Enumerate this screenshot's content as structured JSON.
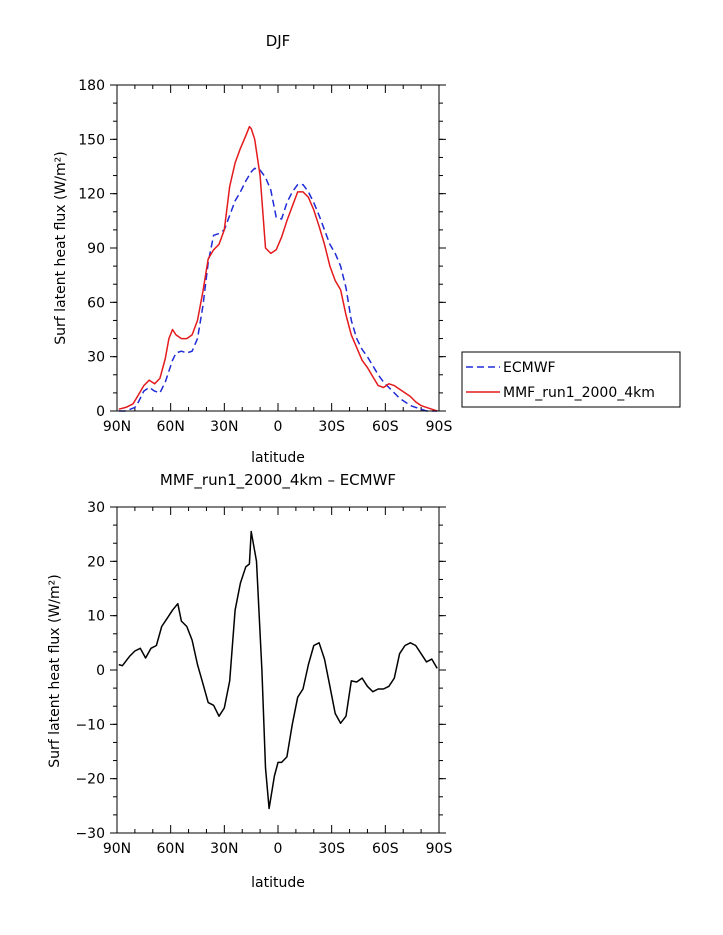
{
  "chart_data": [
    {
      "type": "line",
      "title": "DJF",
      "xlabel": "latitude",
      "ylabel": "Surf latent heat flux (W/m²)",
      "xlim": [
        90,
        -90
      ],
      "ylim": [
        0,
        180
      ],
      "xticks": [
        90,
        60,
        30,
        0,
        -30,
        -60,
        -90
      ],
      "xtick_labels": [
        "90N",
        "60N",
        "30N",
        "0",
        "30S",
        "60S",
        "90S"
      ],
      "yticks": [
        0,
        30,
        60,
        90,
        120,
        150,
        180
      ],
      "ytick_labels": [
        "0",
        "30",
        "60",
        "90",
        "120",
        "150",
        "180"
      ],
      "legend_position": "right",
      "series": [
        {
          "name": "ECMWF",
          "color": "#1f2bd6",
          "dash": true,
          "x": [
            89,
            85,
            80,
            78,
            75,
            72,
            69,
            66,
            63,
            61,
            59,
            57,
            54,
            51,
            48,
            45,
            42,
            39,
            36,
            33,
            30,
            27,
            24,
            21,
            18,
            15,
            13,
            10,
            7,
            4,
            1,
            -2,
            -5,
            -8,
            -11,
            -14,
            -17,
            -20,
            -23,
            -26,
            -29,
            -32,
            -35,
            -38,
            -41,
            -44,
            -47,
            -50,
            -53,
            -56,
            -59,
            -62,
            -65,
            -68,
            -71,
            -74,
            -77,
            -80,
            -83,
            -86,
            -89
          ],
          "y": [
            0,
            0,
            2,
            5,
            11,
            13,
            11,
            10,
            16,
            22,
            28,
            32,
            33,
            32,
            33,
            40,
            58,
            82,
            97,
            98,
            100,
            108,
            116,
            121,
            127,
            132,
            134,
            133,
            129,
            122,
            107,
            106,
            115,
            121,
            125,
            125,
            121,
            115,
            108,
            100,
            92,
            87,
            80,
            68,
            50,
            40,
            34,
            30,
            25,
            20,
            16,
            13,
            10,
            7,
            5,
            3,
            2,
            1,
            0,
            0,
            0
          ]
        },
        {
          "name": "MMF_run1_2000_4km",
          "color": "#e41a1c",
          "dash": false,
          "x": [
            89,
            85,
            81,
            78,
            75,
            72,
            69,
            66,
            63,
            61,
            59,
            57,
            54,
            51,
            48,
            45,
            42,
            39,
            36,
            33,
            30,
            27,
            24,
            21,
            18,
            16,
            15,
            13,
            10,
            7,
            4,
            1,
            -2,
            -5,
            -8,
            -11,
            -14,
            -17,
            -20,
            -23,
            -26,
            -29,
            -32,
            -35,
            -38,
            -41,
            -44,
            -47,
            -50,
            -53,
            -56,
            -59,
            -62,
            -65,
            -68,
            -71,
            -74,
            -77,
            -80,
            -83,
            -86,
            -89
          ],
          "y": [
            1,
            2,
            4,
            9,
            14,
            17,
            15,
            18,
            29,
            40,
            45,
            42,
            40,
            40,
            42,
            50,
            66,
            84,
            89,
            92,
            100,
            124,
            137,
            145,
            152,
            157,
            156,
            150,
            130,
            90,
            87,
            89,
            96,
            105,
            113,
            121,
            121,
            118,
            111,
            102,
            92,
            80,
            72,
            67,
            53,
            42,
            35,
            28,
            24,
            19,
            14,
            13,
            15,
            14,
            12,
            10,
            8,
            5,
            3,
            2,
            1,
            0
          ]
        }
      ]
    },
    {
      "type": "line",
      "title": "MMF_run1_2000_4km – ECMWF",
      "xlabel": "latitude",
      "ylabel": "Surf latent heat flux (W/m²)",
      "xlim": [
        90,
        -90
      ],
      "ylim": [
        -30,
        30
      ],
      "xticks": [
        90,
        60,
        30,
        0,
        -30,
        -60,
        -90
      ],
      "xtick_labels": [
        "90N",
        "60N",
        "30N",
        "0",
        "30S",
        "60S",
        "90S"
      ],
      "yticks": [
        -30,
        -20,
        -10,
        0,
        10,
        20,
        30
      ],
      "ytick_labels": [
        "−30",
        "−20",
        "−10",
        "0",
        "10",
        "20",
        "30"
      ],
      "series": [
        {
          "color": "#000000",
          "dash": false,
          "x": [
            89,
            87,
            83,
            80,
            77,
            74,
            71,
            68,
            65,
            62,
            59,
            56,
            54,
            51,
            48,
            45,
            42,
            39,
            36,
            33,
            30,
            27,
            24,
            21,
            18,
            16,
            15,
            12,
            9,
            7,
            5,
            2,
            0,
            -2,
            -5,
            -8,
            -11,
            -14,
            -17,
            -20,
            -23,
            -26,
            -29,
            -32,
            -35,
            -38,
            -41,
            -44,
            -47,
            -50,
            -53,
            -56,
            -59,
            -62,
            -65,
            -68,
            -71,
            -74,
            -77,
            -80,
            -83,
            -86,
            -89
          ],
          "y": [
            1,
            0.8,
            2.5,
            3.5,
            4,
            2.2,
            4,
            4.5,
            8,
            9.5,
            11,
            12.2,
            9,
            8,
            5.5,
            1,
            -2.5,
            -6,
            -6.5,
            -8.5,
            -7,
            -2,
            11,
            16,
            19,
            19.5,
            25.5,
            20,
            0,
            -18,
            -25.5,
            -19.5,
            -17,
            -17,
            -16,
            -10,
            -5,
            -3.5,
            1,
            4.5,
            5,
            2,
            -3,
            -8,
            -9.8,
            -8.5,
            -2,
            -2.2,
            -1.5,
            -3,
            -4,
            -3.5,
            -3.5,
            -3,
            -1.5,
            3,
            4.5,
            5,
            4.5,
            3,
            1.5,
            2,
            0.3
          ]
        }
      ]
    }
  ]
}
